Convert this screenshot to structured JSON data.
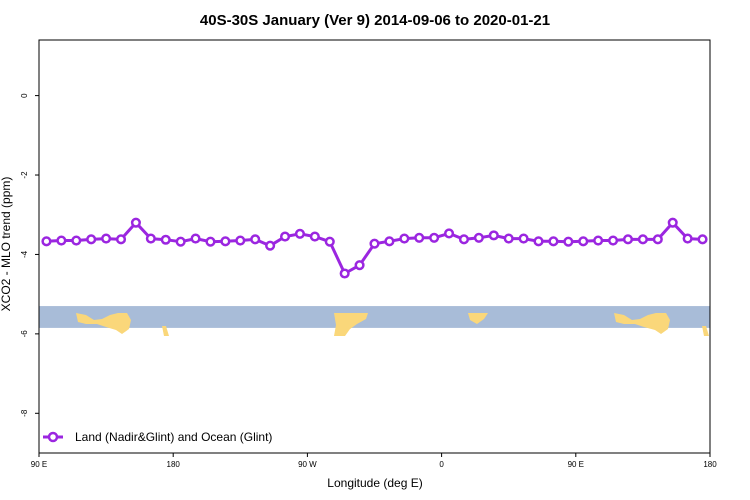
{
  "chart_data": {
    "type": "line",
    "title": "40S-30S January (Ver 9)   2014-09-06 to 2020-01-21",
    "xlabel": "Longitude (deg E)",
    "ylabel": "XCO2 - MLO trend (ppm)",
    "xlim": [
      90,
      540
    ],
    "ylim": [
      -9,
      1.4
    ],
    "x_ticks": [
      {
        "value": 90,
        "label": "90 E"
      },
      {
        "value": 180,
        "label": "180"
      },
      {
        "value": 270,
        "label": "90 W"
      },
      {
        "value": 360,
        "label": "0"
      },
      {
        "value": 450,
        "label": "90 E"
      },
      {
        "value": 540,
        "label": "180"
      }
    ],
    "y_ticks": [
      {
        "value": 0,
        "label": "0"
      },
      {
        "value": -2,
        "label": "-2"
      },
      {
        "value": -4,
        "label": "-4"
      },
      {
        "value": -6,
        "label": "-6"
      },
      {
        "value": -8,
        "label": "-8"
      }
    ],
    "series": [
      {
        "name": "Land (Nadir&Glint) and Ocean (Glint)",
        "color": "#9b26e0",
        "x": [
          95,
          105,
          115,
          125,
          135,
          145,
          155,
          165,
          175,
          185,
          195,
          205,
          215,
          225,
          235,
          245,
          255,
          265,
          275,
          285,
          295,
          305,
          315,
          325,
          335,
          345,
          355,
          365,
          375,
          385,
          395,
          405,
          415,
          425,
          435,
          445,
          455,
          465,
          475,
          485,
          495,
          505,
          515,
          525,
          535
        ],
        "values": [
          -3.67,
          -3.65,
          -3.65,
          -3.62,
          -3.6,
          -3.62,
          -3.2,
          -3.6,
          -3.63,
          -3.68,
          -3.6,
          -3.68,
          -3.67,
          -3.65,
          -3.62,
          -3.78,
          -3.55,
          -3.48,
          -3.55,
          -3.68,
          -4.48,
          -4.27,
          -3.73,
          -3.67,
          -3.6,
          -3.58,
          -3.58,
          -3.47,
          -3.62,
          -3.58,
          -3.52,
          -3.6,
          -3.6,
          -3.67,
          -3.67,
          -3.68,
          -3.67,
          -3.65,
          -3.65,
          -3.62,
          -3.62,
          -3.62,
          -3.2,
          -3.6,
          -3.62
        ]
      }
    ],
    "map_strip": {
      "y_range": [
        -5.85,
        -5.3
      ],
      "ocean_color": "#a8bcd8",
      "land_color": "#fad77a"
    },
    "legend_position": "bottom-left",
    "grid": false
  }
}
